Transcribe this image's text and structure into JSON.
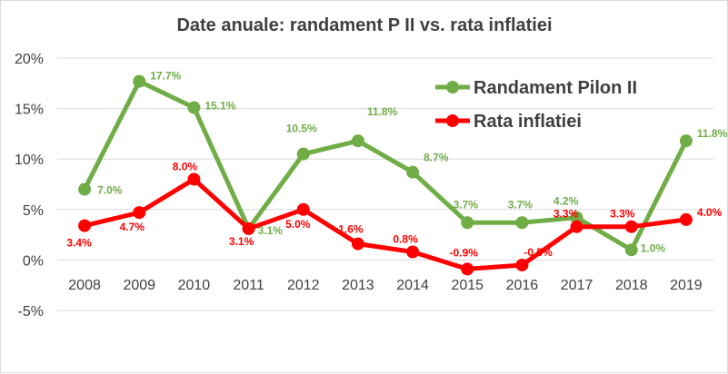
{
  "chart_data": {
    "type": "line",
    "title": "Date anuale: randament P II vs. rata inflatiei",
    "xlabel": "",
    "ylabel": "",
    "x": [
      "2008",
      "2009",
      "2010",
      "2011",
      "2012",
      "2013",
      "2014",
      "2015",
      "2016",
      "2017",
      "2018",
      "2019"
    ],
    "ylim": [
      -5,
      20
    ],
    "yticks": [
      -5,
      0,
      5,
      10,
      15,
      20
    ],
    "ytick_labels": [
      "-5%",
      "0%",
      "5%",
      "10%",
      "15%",
      "20%"
    ],
    "grid": true,
    "legend_position": "top-right",
    "series": [
      {
        "name": "Randament Pilon II",
        "color": "#70ad47",
        "values": [
          7.0,
          17.7,
          15.1,
          3.1,
          10.5,
          11.8,
          8.7,
          3.7,
          3.7,
          4.2,
          1.0,
          11.8
        ],
        "labels": [
          "7.0%",
          "17.7%",
          "15.1%",
          "3.1%",
          "10.5%",
          "11.8%",
          "8.7%",
          "3.7%",
          "3.7%",
          "4.2%",
          "1.0%",
          "11.8%"
        ]
      },
      {
        "name": "Rata inflatiei",
        "color": "#ff0000",
        "values": [
          3.4,
          4.7,
          8.0,
          3.1,
          5.0,
          1.6,
          0.8,
          -0.9,
          -0.5,
          3.3,
          3.3,
          4.0
        ],
        "labels": [
          "3.4%",
          "4.7%",
          "8.0%",
          "3.1%",
          "5.0%",
          "1.6%",
          "0.8%",
          "-0.9%",
          "-0.5%",
          "3.3%",
          "3.3%",
          "4.0%"
        ]
      }
    ]
  }
}
